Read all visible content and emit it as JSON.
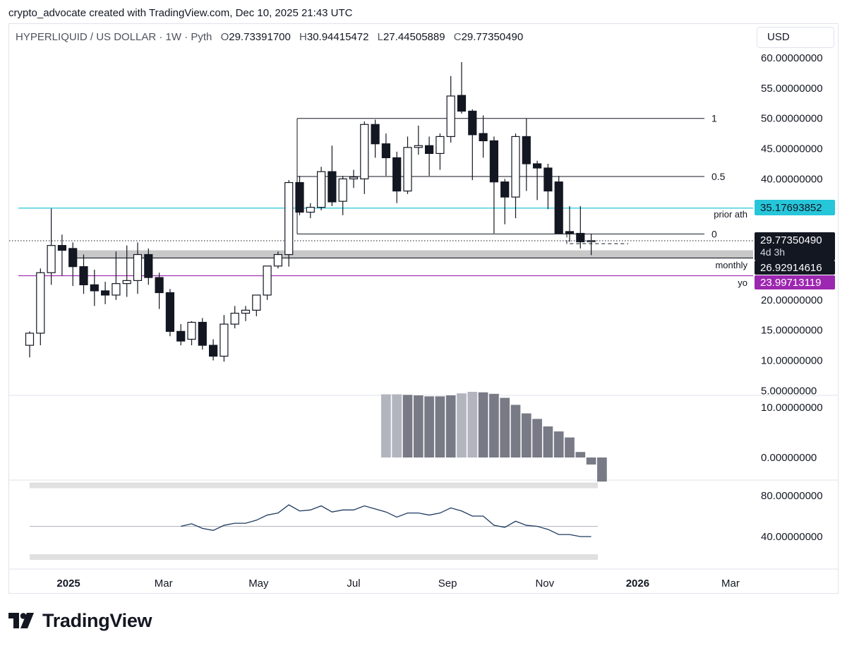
{
  "header": {
    "credit": "crypto_advocate created with TradingView.com, Dec 10, 2025 21:43 UTC",
    "symbol": "HYPERLIQUID / US DOLLAR · 1W · Pyth",
    "o_label": "O",
    "o_value": "29.73391700",
    "h_label": "H",
    "h_value": "30.94415472",
    "l_label": "L",
    "l_value": "27.44505889",
    "c_label": "C",
    "c_value": "29.77350490",
    "currency": "USD"
  },
  "brand": {
    "name": "TradingView"
  },
  "colors": {
    "cyan": "#26c6da",
    "purple": "#9c27b0",
    "black": "#131722",
    "zone": "#c8c8c8",
    "hist_light": "#b2b5be",
    "hist_dark": "#787b86",
    "rsi": "#1e3a5f"
  },
  "chart_data": {
    "type": "candlestick",
    "title": "HYPERLIQUID / US DOLLAR · 1W · Pyth",
    "time_axis": {
      "ticks": [
        {
          "label": "2025",
          "week": 3.6,
          "bold": true
        },
        {
          "label": "Mar",
          "week": 12.4,
          "bold": false
        },
        {
          "label": "May",
          "week": 21.2,
          "bold": false
        },
        {
          "label": "Jul",
          "week": 30.0,
          "bold": false
        },
        {
          "label": "Sep",
          "week": 38.7,
          "bold": false
        },
        {
          "label": "Nov",
          "week": 47.7,
          "bold": false
        },
        {
          "label": "2026",
          "week": 56.3,
          "bold": true
        },
        {
          "label": "Mar",
          "week": 64.9,
          "bold": false
        }
      ]
    },
    "price_axis": {
      "ylim": [
        3,
        62
      ],
      "ticks": [
        {
          "value": 60,
          "label": "60.00000000"
        },
        {
          "value": 55,
          "label": "55.00000000"
        },
        {
          "value": 50,
          "label": "50.00000000"
        },
        {
          "value": 45,
          "label": "45.00000000"
        },
        {
          "value": 40,
          "label": "40.00000000"
        },
        {
          "value": 20,
          "label": "20.00000000"
        },
        {
          "value": 15,
          "label": "15.00000000"
        },
        {
          "value": 10,
          "label": "10.00000000"
        },
        {
          "value": 5,
          "label": "5.00000000"
        }
      ]
    },
    "candles": [
      {
        "o": 12.5,
        "h": 14.8,
        "l": 10.5,
        "c": 14.5
      },
      {
        "o": 14.5,
        "h": 25.2,
        "l": 12.5,
        "c": 24.5
      },
      {
        "o": 24.5,
        "h": 35.1,
        "l": 22.5,
        "c": 29.0
      },
      {
        "o": 29.0,
        "h": 30.8,
        "l": 24.0,
        "c": 28.2
      },
      {
        "o": 28.5,
        "h": 29.5,
        "l": 22.3,
        "c": 25.5
      },
      {
        "o": 25.5,
        "h": 27.5,
        "l": 21.0,
        "c": 22.5
      },
      {
        "o": 22.5,
        "h": 25.0,
        "l": 19.0,
        "c": 21.5
      },
      {
        "o": 21.5,
        "h": 23.0,
        "l": 19.3,
        "c": 20.8
      },
      {
        "o": 20.8,
        "h": 28.0,
        "l": 20.0,
        "c": 22.7
      },
      {
        "o": 22.7,
        "h": 29.0,
        "l": 20.5,
        "c": 23.2
      },
      {
        "o": 23.2,
        "h": 29.5,
        "l": 21.0,
        "c": 27.5
      },
      {
        "o": 27.5,
        "h": 28.5,
        "l": 22.5,
        "c": 23.7
      },
      {
        "o": 23.7,
        "h": 24.5,
        "l": 18.5,
        "c": 21.2
      },
      {
        "o": 21.2,
        "h": 21.8,
        "l": 14.0,
        "c": 14.8
      },
      {
        "o": 14.8,
        "h": 16.0,
        "l": 12.5,
        "c": 13.2
      },
      {
        "o": 13.5,
        "h": 16.5,
        "l": 12.5,
        "c": 16.3
      },
      {
        "o": 16.3,
        "h": 17.0,
        "l": 11.8,
        "c": 12.5
      },
      {
        "o": 12.5,
        "h": 13.5,
        "l": 10.0,
        "c": 10.7
      },
      {
        "o": 10.7,
        "h": 17.5,
        "l": 9.8,
        "c": 16.0
      },
      {
        "o": 16.0,
        "h": 19.0,
        "l": 15.3,
        "c": 17.8
      },
      {
        "o": 17.8,
        "h": 19.0,
        "l": 16.5,
        "c": 18.3
      },
      {
        "o": 18.3,
        "h": 20.5,
        "l": 17.3,
        "c": 20.8
      },
      {
        "o": 20.8,
        "h": 25.5,
        "l": 20.0,
        "c": 25.6
      },
      {
        "o": 25.6,
        "h": 28.0,
        "l": 25.2,
        "c": 27.5
      },
      {
        "o": 27.5,
        "h": 39.8,
        "l": 25.5,
        "c": 39.4
      },
      {
        "o": 39.4,
        "h": 40.5,
        "l": 34.0,
        "c": 34.5
      },
      {
        "o": 34.5,
        "h": 36.0,
        "l": 33.5,
        "c": 35.3
      },
      {
        "o": 35.3,
        "h": 42.0,
        "l": 34.8,
        "c": 41.2
      },
      {
        "o": 41.2,
        "h": 45.5,
        "l": 35.5,
        "c": 36.2
      },
      {
        "o": 36.3,
        "h": 40.5,
        "l": 34.0,
        "c": 40.0
      },
      {
        "o": 40.0,
        "h": 41.5,
        "l": 38.5,
        "c": 40.3
      },
      {
        "o": 40.0,
        "h": 49.5,
        "l": 37.5,
        "c": 49.0
      },
      {
        "o": 49.0,
        "h": 49.8,
        "l": 43.5,
        "c": 45.8
      },
      {
        "o": 45.8,
        "h": 47.5,
        "l": 40.5,
        "c": 43.5
      },
      {
        "o": 43.5,
        "h": 44.5,
        "l": 36.0,
        "c": 38.0
      },
      {
        "o": 38.0,
        "h": 47.0,
        "l": 37.5,
        "c": 45.2
      },
      {
        "o": 45.2,
        "h": 48.8,
        "l": 44.0,
        "c": 45.5
      },
      {
        "o": 45.5,
        "h": 47.0,
        "l": 40.5,
        "c": 44.2
      },
      {
        "o": 44.2,
        "h": 47.5,
        "l": 41.5,
        "c": 47.0
      },
      {
        "o": 47.0,
        "h": 57.0,
        "l": 46.0,
        "c": 53.7
      },
      {
        "o": 53.8,
        "h": 59.3,
        "l": 50.8,
        "c": 51.2
      },
      {
        "o": 51.2,
        "h": 51.5,
        "l": 39.8,
        "c": 47.3
      },
      {
        "o": 47.5,
        "h": 50.5,
        "l": 43.5,
        "c": 46.3
      },
      {
        "o": 46.3,
        "h": 47.0,
        "l": 31.0,
        "c": 39.5
      },
      {
        "o": 39.5,
        "h": 40.0,
        "l": 32.5,
        "c": 37.0
      },
      {
        "o": 37.0,
        "h": 47.5,
        "l": 33.5,
        "c": 47.0
      },
      {
        "o": 47.0,
        "h": 50.0,
        "l": 38.0,
        "c": 42.5
      },
      {
        "o": 42.5,
        "h": 43.0,
        "l": 36.5,
        "c": 41.8
      },
      {
        "o": 41.8,
        "h": 42.5,
        "l": 35.0,
        "c": 38.0
      },
      {
        "o": 39.5,
        "h": 40.5,
        "l": 31.0,
        "c": 31.0
      },
      {
        "o": 31.3,
        "h": 35.5,
        "l": 29.6,
        "c": 31.0
      },
      {
        "o": 31.0,
        "h": 35.5,
        "l": 28.5,
        "c": 29.6
      },
      {
        "o": 29.7,
        "h": 30.9,
        "l": 27.4,
        "c": 29.8
      }
    ],
    "levels": [
      {
        "name": "prior ath",
        "value": 35.17693852,
        "color": "#26c6da",
        "label": "35.17693852"
      },
      {
        "name": "monthly",
        "value": 26.92914616,
        "color": "#131722",
        "label": "26.92914616"
      },
      {
        "name": "yo",
        "value": 23.99713119,
        "color": "#9c27b0",
        "label": "23.99713119"
      }
    ],
    "current_price": {
      "value": 29.7735049,
      "label": "29.77350490",
      "countdown": "4d 3h"
    },
    "fib": [
      {
        "label": "1",
        "value": 50.0
      },
      {
        "label": "0.5",
        "value": 40.4
      },
      {
        "label": "0",
        "value": 30.9
      }
    ],
    "zone": {
      "from": 27.0,
      "to": 28.2
    },
    "histogram": {
      "ticks": [
        {
          "value": 10,
          "label": "10.00000000"
        },
        {
          "value": 0,
          "label": "0.00000000"
        }
      ],
      "values": [
        [
          33,
          12.6
        ],
        [
          34,
          12.6
        ],
        [
          35,
          12.5
        ],
        [
          36,
          12.4
        ],
        [
          37,
          12.2
        ],
        [
          38,
          12.2
        ],
        [
          39,
          12.4
        ],
        [
          40,
          12.8
        ],
        [
          41,
          13.1
        ],
        [
          42,
          13.0
        ],
        [
          43,
          12.7
        ],
        [
          44,
          11.9
        ],
        [
          45,
          10.5
        ],
        [
          46,
          8.8
        ],
        [
          47,
          7.7
        ],
        [
          48,
          6.2
        ],
        [
          49,
          5.2
        ],
        [
          50,
          4.0
        ],
        [
          51,
          1.1
        ],
        [
          52,
          -1.4
        ],
        [
          53,
          -4.8
        ]
      ],
      "shade": [
        "l",
        "l",
        "d",
        "d",
        "d",
        "d",
        "d",
        "l",
        "l",
        "d",
        "d",
        "d",
        "d",
        "d",
        "d",
        "d",
        "d",
        "d",
        "d",
        "d",
        "d"
      ]
    },
    "rsi": {
      "ticks": [
        {
          "value": 80,
          "label": "80.00000000"
        },
        {
          "value": 40,
          "label": "40.00000000"
        }
      ],
      "band_upper": 90,
      "band_lower": 20,
      "mid": 50,
      "values": [
        [
          14,
          50
        ],
        [
          15,
          52.5
        ],
        [
          16,
          48
        ],
        [
          17,
          46
        ],
        [
          18,
          51
        ],
        [
          19,
          53
        ],
        [
          20,
          53
        ],
        [
          21,
          56
        ],
        [
          22,
          61
        ],
        [
          23,
          63
        ],
        [
          24,
          71
        ],
        [
          25,
          65
        ],
        [
          26,
          66
        ],
        [
          27,
          70
        ],
        [
          28,
          64
        ],
        [
          29,
          66
        ],
        [
          30,
          66
        ],
        [
          31,
          70
        ],
        [
          32,
          67
        ],
        [
          33,
          64
        ],
        [
          34,
          59
        ],
        [
          35,
          63
        ],
        [
          36,
          63
        ],
        [
          37,
          61
        ],
        [
          38,
          63
        ],
        [
          39,
          68
        ],
        [
          40,
          65
        ],
        [
          41,
          60
        ],
        [
          42,
          60
        ],
        [
          43,
          51
        ],
        [
          44,
          49
        ],
        [
          45,
          55
        ],
        [
          46,
          51
        ],
        [
          47,
          50
        ],
        [
          48,
          47
        ],
        [
          49,
          42
        ],
        [
          50,
          42
        ],
        [
          51,
          40
        ],
        [
          52,
          40
        ]
      ]
    }
  }
}
